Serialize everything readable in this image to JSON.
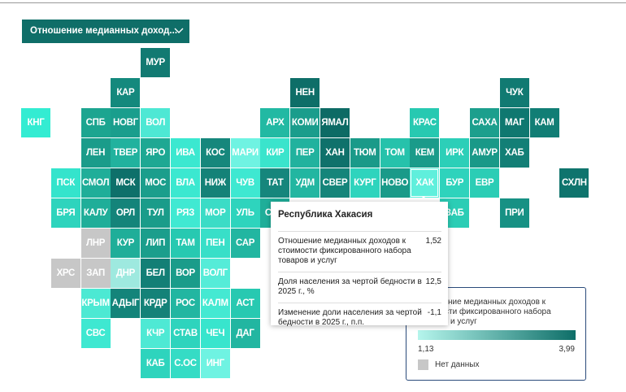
{
  "dropdown": {
    "label": "Отношение медианных доход..."
  },
  "tiles": [
    {
      "label": "МУР",
      "color": "#127a72"
    },
    {
      "label": "КАР",
      "color": "#14897d"
    },
    {
      "label": "НЕН",
      "color": "#0e6e68"
    },
    {
      "label": "ЧУК",
      "color": "#117a72"
    },
    {
      "label": "КНГ",
      "color": "#33ecd2"
    },
    {
      "label": "СПБ",
      "color": "#1ca590"
    },
    {
      "label": "НОВГ",
      "color": "#1a9e8d"
    },
    {
      "label": "ВОЛ",
      "color": "#4ee8d4"
    },
    {
      "label": "АРХ",
      "color": "#22b9a3"
    },
    {
      "label": "КОМИ",
      "color": "#1a9d8c"
    },
    {
      "label": "ЯМАЛ",
      "color": "#0d6b65"
    },
    {
      "label": "КРАС",
      "color": "#27c9b1"
    },
    {
      "label": "САХА",
      "color": "#1c9f8d"
    },
    {
      "label": "МАГ",
      "color": "#0f7870"
    },
    {
      "label": "КАМ",
      "color": "#117e75"
    },
    {
      "label": "ЛЕН",
      "color": "#1a9c8a"
    },
    {
      "label": "ТВЕР",
      "color": "#21b29e"
    },
    {
      "label": "ЯРО",
      "color": "#1ea893"
    },
    {
      "label": "ИВА",
      "color": "#3be8d0"
    },
    {
      "label": "КОС",
      "color": "#16877c"
    },
    {
      "label": "МАРИ",
      "color": "#6ff3e2"
    },
    {
      "label": "КИР",
      "color": "#3ae4cc"
    },
    {
      "label": "ПЕР",
      "color": "#21b29e"
    },
    {
      "label": "ХАН",
      "color": "#0f716b"
    },
    {
      "label": "ТЮМ",
      "color": "#1a9a89"
    },
    {
      "label": "ТОМ",
      "color": "#26c2ab"
    },
    {
      "label": "КЕМ",
      "color": "#1a9b8a"
    },
    {
      "label": "ИРК",
      "color": "#2ccfb8"
    },
    {
      "label": "АМУР",
      "color": "#199988"
    },
    {
      "label": "ХАБ",
      "color": "#137f76"
    },
    {
      "label": "ПСК",
      "color": "#34e4cc"
    },
    {
      "label": "СМОЛ",
      "color": "#1fae99"
    },
    {
      "label": "МСК",
      "color": "#0e706a"
    },
    {
      "label": "МОС",
      "color": "#1b9e8c"
    },
    {
      "label": "ВЛА",
      "color": "#3be8d0"
    },
    {
      "label": "НИЖ",
      "color": "#148278"
    },
    {
      "label": "ЧУВ",
      "color": "#3ee8d1"
    },
    {
      "label": "ТАТ",
      "color": "#16867c"
    },
    {
      "label": "УДМ",
      "color": "#22b6a1"
    },
    {
      "label": "СВЕР",
      "color": "#15857a"
    },
    {
      "label": "КУРГ",
      "color": "#2ed4bd"
    },
    {
      "label": "НОВО",
      "color": "#1a9a89"
    },
    {
      "label": "ХАК",
      "color": "#5fefdc"
    },
    {
      "label": "БУР",
      "color": "#2ed3bc"
    },
    {
      "label": "ЕВР",
      "color": "#2bcdb5"
    },
    {
      "label": "СХЛН",
      "color": "#0f746d"
    },
    {
      "label": "БРЯ",
      "color": "#2ed4bd"
    },
    {
      "label": "КАЛУ",
      "color": "#1fae99"
    },
    {
      "label": "ОРЛ",
      "color": "#14847a"
    },
    {
      "label": "ТУЛ",
      "color": "#1a9c8a"
    },
    {
      "label": "РЯЗ",
      "color": "#40e9d2"
    },
    {
      "label": "МОР",
      "color": "#3bdcc6"
    },
    {
      "label": "УЛЬ",
      "color": "#2ed4bd"
    },
    {
      "label": "САМ",
      "color": "#1fae99"
    },
    {
      "label": "ЗАБ",
      "color": "#2bcdb5"
    },
    {
      "label": "ПРИ",
      "color": "#179184"
    },
    {
      "label": "ЛНР",
      "color": "#c7c7c7"
    },
    {
      "label": "КУР",
      "color": "#1fae99"
    },
    {
      "label": "ЛИП",
      "color": "#1b9e8c"
    },
    {
      "label": "ТАМ",
      "color": "#27c9b1"
    },
    {
      "label": "ПЕН",
      "color": "#38dfc8"
    },
    {
      "label": "САР",
      "color": "#22b6a1"
    },
    {
      "label": "ХРС",
      "color": "#c7c7c7"
    },
    {
      "label": "ЗАП",
      "color": "#c7c7c7"
    },
    {
      "label": "ДНР",
      "color": "#9ee9df"
    },
    {
      "label": "БЕЛ",
      "color": "#137f76"
    },
    {
      "label": "ВОР",
      "color": "#1a9c8a"
    },
    {
      "label": "ВОЛГ",
      "color": "#55ecd8"
    },
    {
      "label": "КРЫМ",
      "color": "#4ce9d3"
    },
    {
      "label": "АДЫГ",
      "color": "#14847a"
    },
    {
      "label": "КРДР",
      "color": "#148278"
    },
    {
      "label": "РОС",
      "color": "#22b6a1"
    },
    {
      "label": "КАЛМ",
      "color": "#44e9d2"
    },
    {
      "label": "АСТ",
      "color": "#27c9b1"
    },
    {
      "label": "СВС",
      "color": "#3ee8d1"
    },
    {
      "label": "КЧР",
      "color": "#4ee9d4"
    },
    {
      "label": "СТАВ",
      "color": "#2ed4bd"
    },
    {
      "label": "ЧЕЧ",
      "color": "#38e5cd"
    },
    {
      "label": "ДАГ",
      "color": "#22b6a1"
    },
    {
      "label": "КАБ",
      "color": "#2ed4bd"
    },
    {
      "label": "С.ОС",
      "color": "#35dcc5"
    },
    {
      "label": "ИНГ",
      "color": "#6ff3e2"
    }
  ],
  "tooltip": {
    "title": "Республика Хакасия",
    "rows": [
      {
        "label": "Отношение медианных доходов к стоимости фиксированного набора товаров и услуг",
        "value": "1,52"
      },
      {
        "label": "Доля населения за чертой бедности в 2025 г., %",
        "value": "12,5"
      },
      {
        "label": "Изменение доли населения за чертой бедности в 2025 г., п.п.",
        "value": "-1,1"
      }
    ]
  },
  "legend": {
    "title": "Отношение медианных доходов к стоимости фиксированного набора товаров и услуг",
    "min": "1,13",
    "max": "3,99",
    "no_data": "Нет данных",
    "colors": [
      "#b5f5ec",
      "#0e6e68"
    ],
    "no_data_color": "#c7c7c7"
  }
}
